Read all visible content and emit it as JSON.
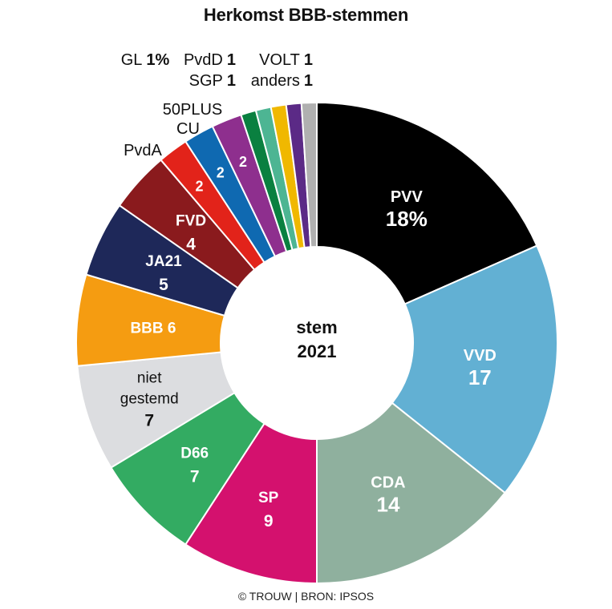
{
  "title": "Herkomst BBB-stemmen",
  "credit": "© TROUW | BRON: IPSOS",
  "chart_data": {
    "type": "pie",
    "donut": true,
    "center_label": [
      "stem",
      "2021"
    ],
    "order": "clockwise from top",
    "unit": "%",
    "slices": [
      {
        "label": "PVV",
        "value": 18,
        "value_text": "18%",
        "color": "#000000"
      },
      {
        "label": "VVD",
        "value": 17,
        "value_text": "17",
        "color": "#62b0d3"
      },
      {
        "label": "CDA",
        "value": 14,
        "value_text": "14",
        "color": "#8fb09e"
      },
      {
        "label": "SP",
        "value": 9,
        "value_text": "9",
        "color": "#d4116e"
      },
      {
        "label": "D66",
        "value": 7,
        "value_text": "7",
        "color": "#33ab62"
      },
      {
        "label": "niet gestemd",
        "value": 7,
        "value_text": "7",
        "color": "#dcdde0"
      },
      {
        "label": "BBB",
        "value": 6,
        "value_text": "6",
        "color": "#f59c11"
      },
      {
        "label": "JA21",
        "value": 5,
        "value_text": "5",
        "color": "#1e2859"
      },
      {
        "label": "FVD",
        "value": 4,
        "value_text": "4",
        "color": "#8a1a1d"
      },
      {
        "label": "PvdA",
        "value": 2,
        "value_text": "2",
        "color": "#e2231a"
      },
      {
        "label": "CU",
        "value": 2,
        "value_text": "2",
        "color": "#0f69b1"
      },
      {
        "label": "50PLUS",
        "value": 2,
        "value_text": "2",
        "color": "#8e2f8e"
      },
      {
        "label": "GL",
        "value": 1,
        "value_text": "1%",
        "color": "#0a8040"
      },
      {
        "label": "PvdD",
        "value": 1,
        "value_text": "1",
        "color": "#4db593"
      },
      {
        "label": "SGP",
        "value": 1,
        "value_text": "1",
        "color": "#f0b800"
      },
      {
        "label": "VOLT",
        "value": 1,
        "value_text": "1",
        "color": "#5b2a86"
      },
      {
        "label": "anders",
        "value": 1,
        "value_text": "1",
        "color": "#b0b0b0"
      }
    ]
  }
}
